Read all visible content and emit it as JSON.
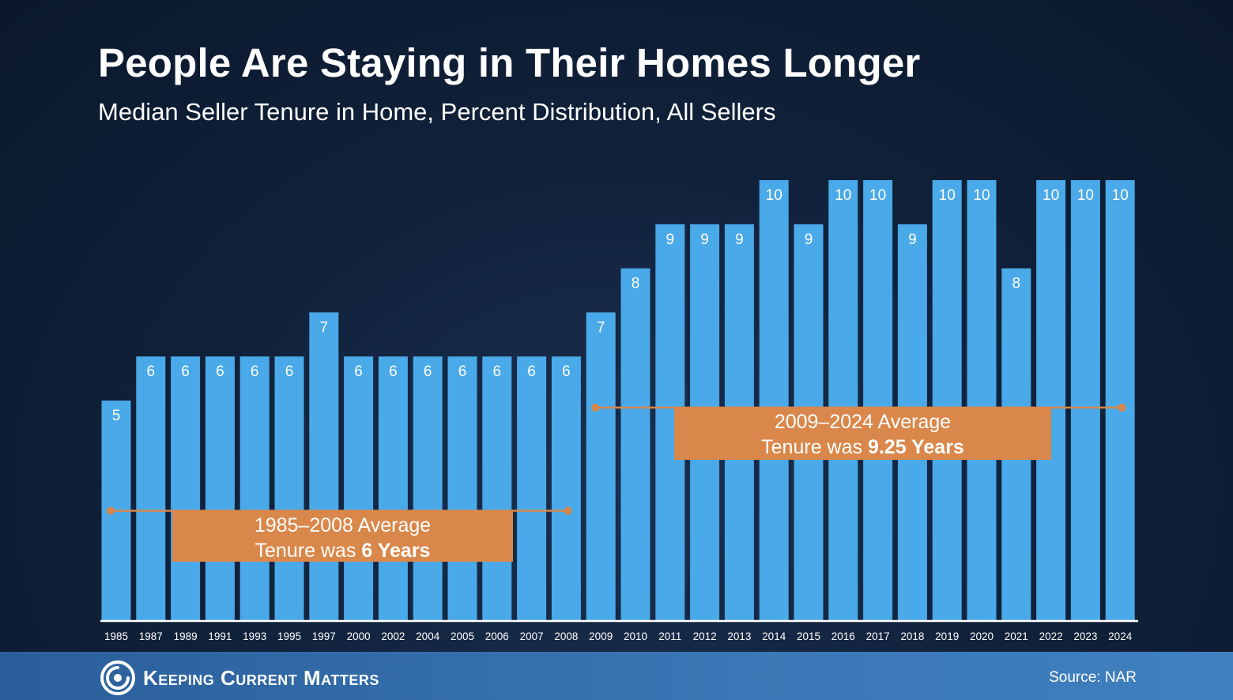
{
  "header": {
    "title": "People Are Staying in Their Homes Longer",
    "subtitle": "Median Seller Tenure in Home, Percent Distribution, All Sellers"
  },
  "footer": {
    "brand": "Keeping Current Matters",
    "source": "Source: NAR",
    "logo_icon": "kcm-swirl-icon"
  },
  "colors": {
    "bar": "#4aa9e8",
    "annotation": "#d9874a",
    "axis": "#ffffff",
    "footer": "#3a77b6"
  },
  "chart_data": {
    "type": "bar",
    "categories": [
      "1985",
      "1987",
      "1989",
      "1991",
      "1993",
      "1995",
      "1997",
      "2000",
      "2002",
      "2004",
      "2005",
      "2006",
      "2007",
      "2008",
      "2009",
      "2010",
      "2011",
      "2012",
      "2013",
      "2014",
      "2015",
      "2016",
      "2017",
      "2018",
      "2019",
      "2020",
      "2021",
      "2022",
      "2023",
      "2024"
    ],
    "values": [
      5,
      6,
      6,
      6,
      6,
      6,
      7,
      6,
      6,
      6,
      6,
      6,
      6,
      6,
      7,
      8,
      9,
      9,
      9,
      10,
      9,
      10,
      10,
      9,
      10,
      10,
      8,
      10,
      10,
      10
    ],
    "ylim": [
      0,
      10.5
    ],
    "grid": false,
    "data_labels": true,
    "annotations": [
      {
        "line1": "1985–2008 Average",
        "line2_prefix": "Tenure was ",
        "line2_bold": "6 Years",
        "value": 2.5,
        "from": "1985",
        "to": "2008"
      },
      {
        "line1": "2009–2024 Average",
        "line2_prefix": "Tenure was ",
        "line2_bold": "9.25 Years",
        "value": 4.84,
        "from": "2009",
        "to": "2024"
      }
    ]
  }
}
